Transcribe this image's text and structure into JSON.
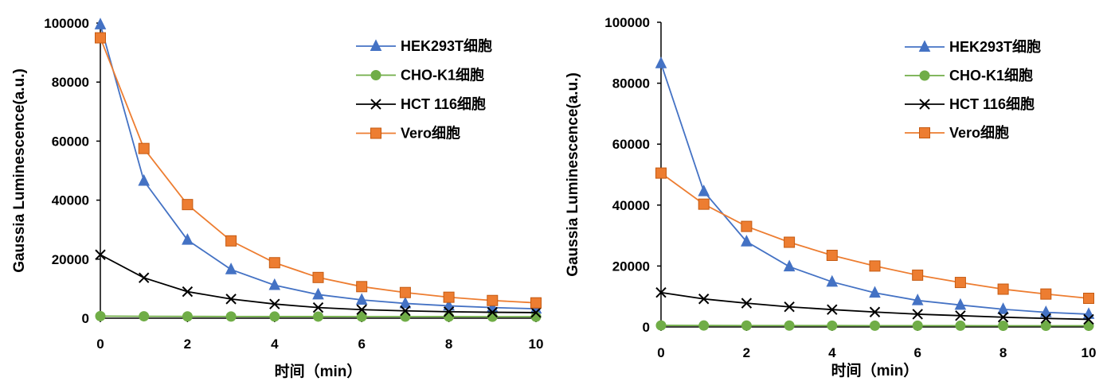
{
  "chart_data": [
    {
      "type": "line",
      "xlabel": "时间（min）",
      "ylabel": "Gaussia Luminescence(a.u.)",
      "x": [
        0,
        1,
        2,
        3,
        4,
        5,
        6,
        7,
        8,
        9,
        10
      ],
      "xlim": [
        0,
        10
      ],
      "ylim": [
        0,
        100000
      ],
      "xticks": [
        "0",
        "2",
        "4",
        "6",
        "8",
        "10"
      ],
      "yticks": [
        "0",
        "20000",
        "40000",
        "60000",
        "80000",
        "100000"
      ],
      "grid": false,
      "legend_position": "top-right",
      "series": [
        {
          "name": "HEK293T细胞",
          "color": "#4472C4",
          "marker": "triangle",
          "values": [
            99500,
            46500,
            26500,
            16500,
            11200,
            8000,
            6200,
            5000,
            4200,
            3600,
            3200
          ]
        },
        {
          "name": "CHO-K1细胞",
          "color": "#70AD47",
          "marker": "circle",
          "values": [
            700,
            650,
            600,
            580,
            560,
            550,
            540,
            530,
            520,
            510,
            500
          ]
        },
        {
          "name": "HCT 116细胞",
          "color": "#000000",
          "marker": "x",
          "values": [
            21500,
            13700,
            9000,
            6500,
            4800,
            3600,
            2900,
            2500,
            2200,
            2000,
            1900
          ]
        },
        {
          "name": "Vero细胞",
          "color": "#ED7D31",
          "marker": "square",
          "values": [
            95000,
            57500,
            38500,
            26200,
            18800,
            13800,
            10700,
            8700,
            7100,
            6000,
            5200
          ]
        }
      ]
    },
    {
      "type": "line",
      "xlabel": "时间（min）",
      "ylabel": "Gaussia Luminescence(a.u.)",
      "x": [
        0,
        1,
        2,
        3,
        4,
        5,
        6,
        7,
        8,
        9,
        10
      ],
      "xlim": [
        0,
        10
      ],
      "ylim": [
        0,
        100000
      ],
      "xticks": [
        "0",
        "2",
        "4",
        "6",
        "8",
        "10"
      ],
      "yticks": [
        "0",
        "20000",
        "40000",
        "60000",
        "80000",
        "100000"
      ],
      "grid": false,
      "legend_position": "top-right",
      "series": [
        {
          "name": "HEK293T细胞",
          "color": "#4472C4",
          "marker": "triangle",
          "values": [
            86500,
            44500,
            28000,
            19800,
            14800,
            11200,
            8700,
            7200,
            5800,
            4800,
            4200
          ]
        },
        {
          "name": "CHO-K1细胞",
          "color": "#70AD47",
          "marker": "circle",
          "values": [
            500,
            480,
            460,
            450,
            440,
            430,
            420,
            410,
            400,
            400,
            400
          ]
        },
        {
          "name": "HCT 116细胞",
          "color": "#000000",
          "marker": "x",
          "values": [
            11300,
            9200,
            7800,
            6600,
            5700,
            4900,
            4200,
            3700,
            3200,
            2800,
            2500
          ]
        },
        {
          "name": "Vero细胞",
          "color": "#ED7D31",
          "marker": "square",
          "values": [
            50500,
            40300,
            33000,
            27800,
            23500,
            20000,
            17000,
            14600,
            12400,
            10800,
            9400
          ]
        }
      ]
    }
  ]
}
